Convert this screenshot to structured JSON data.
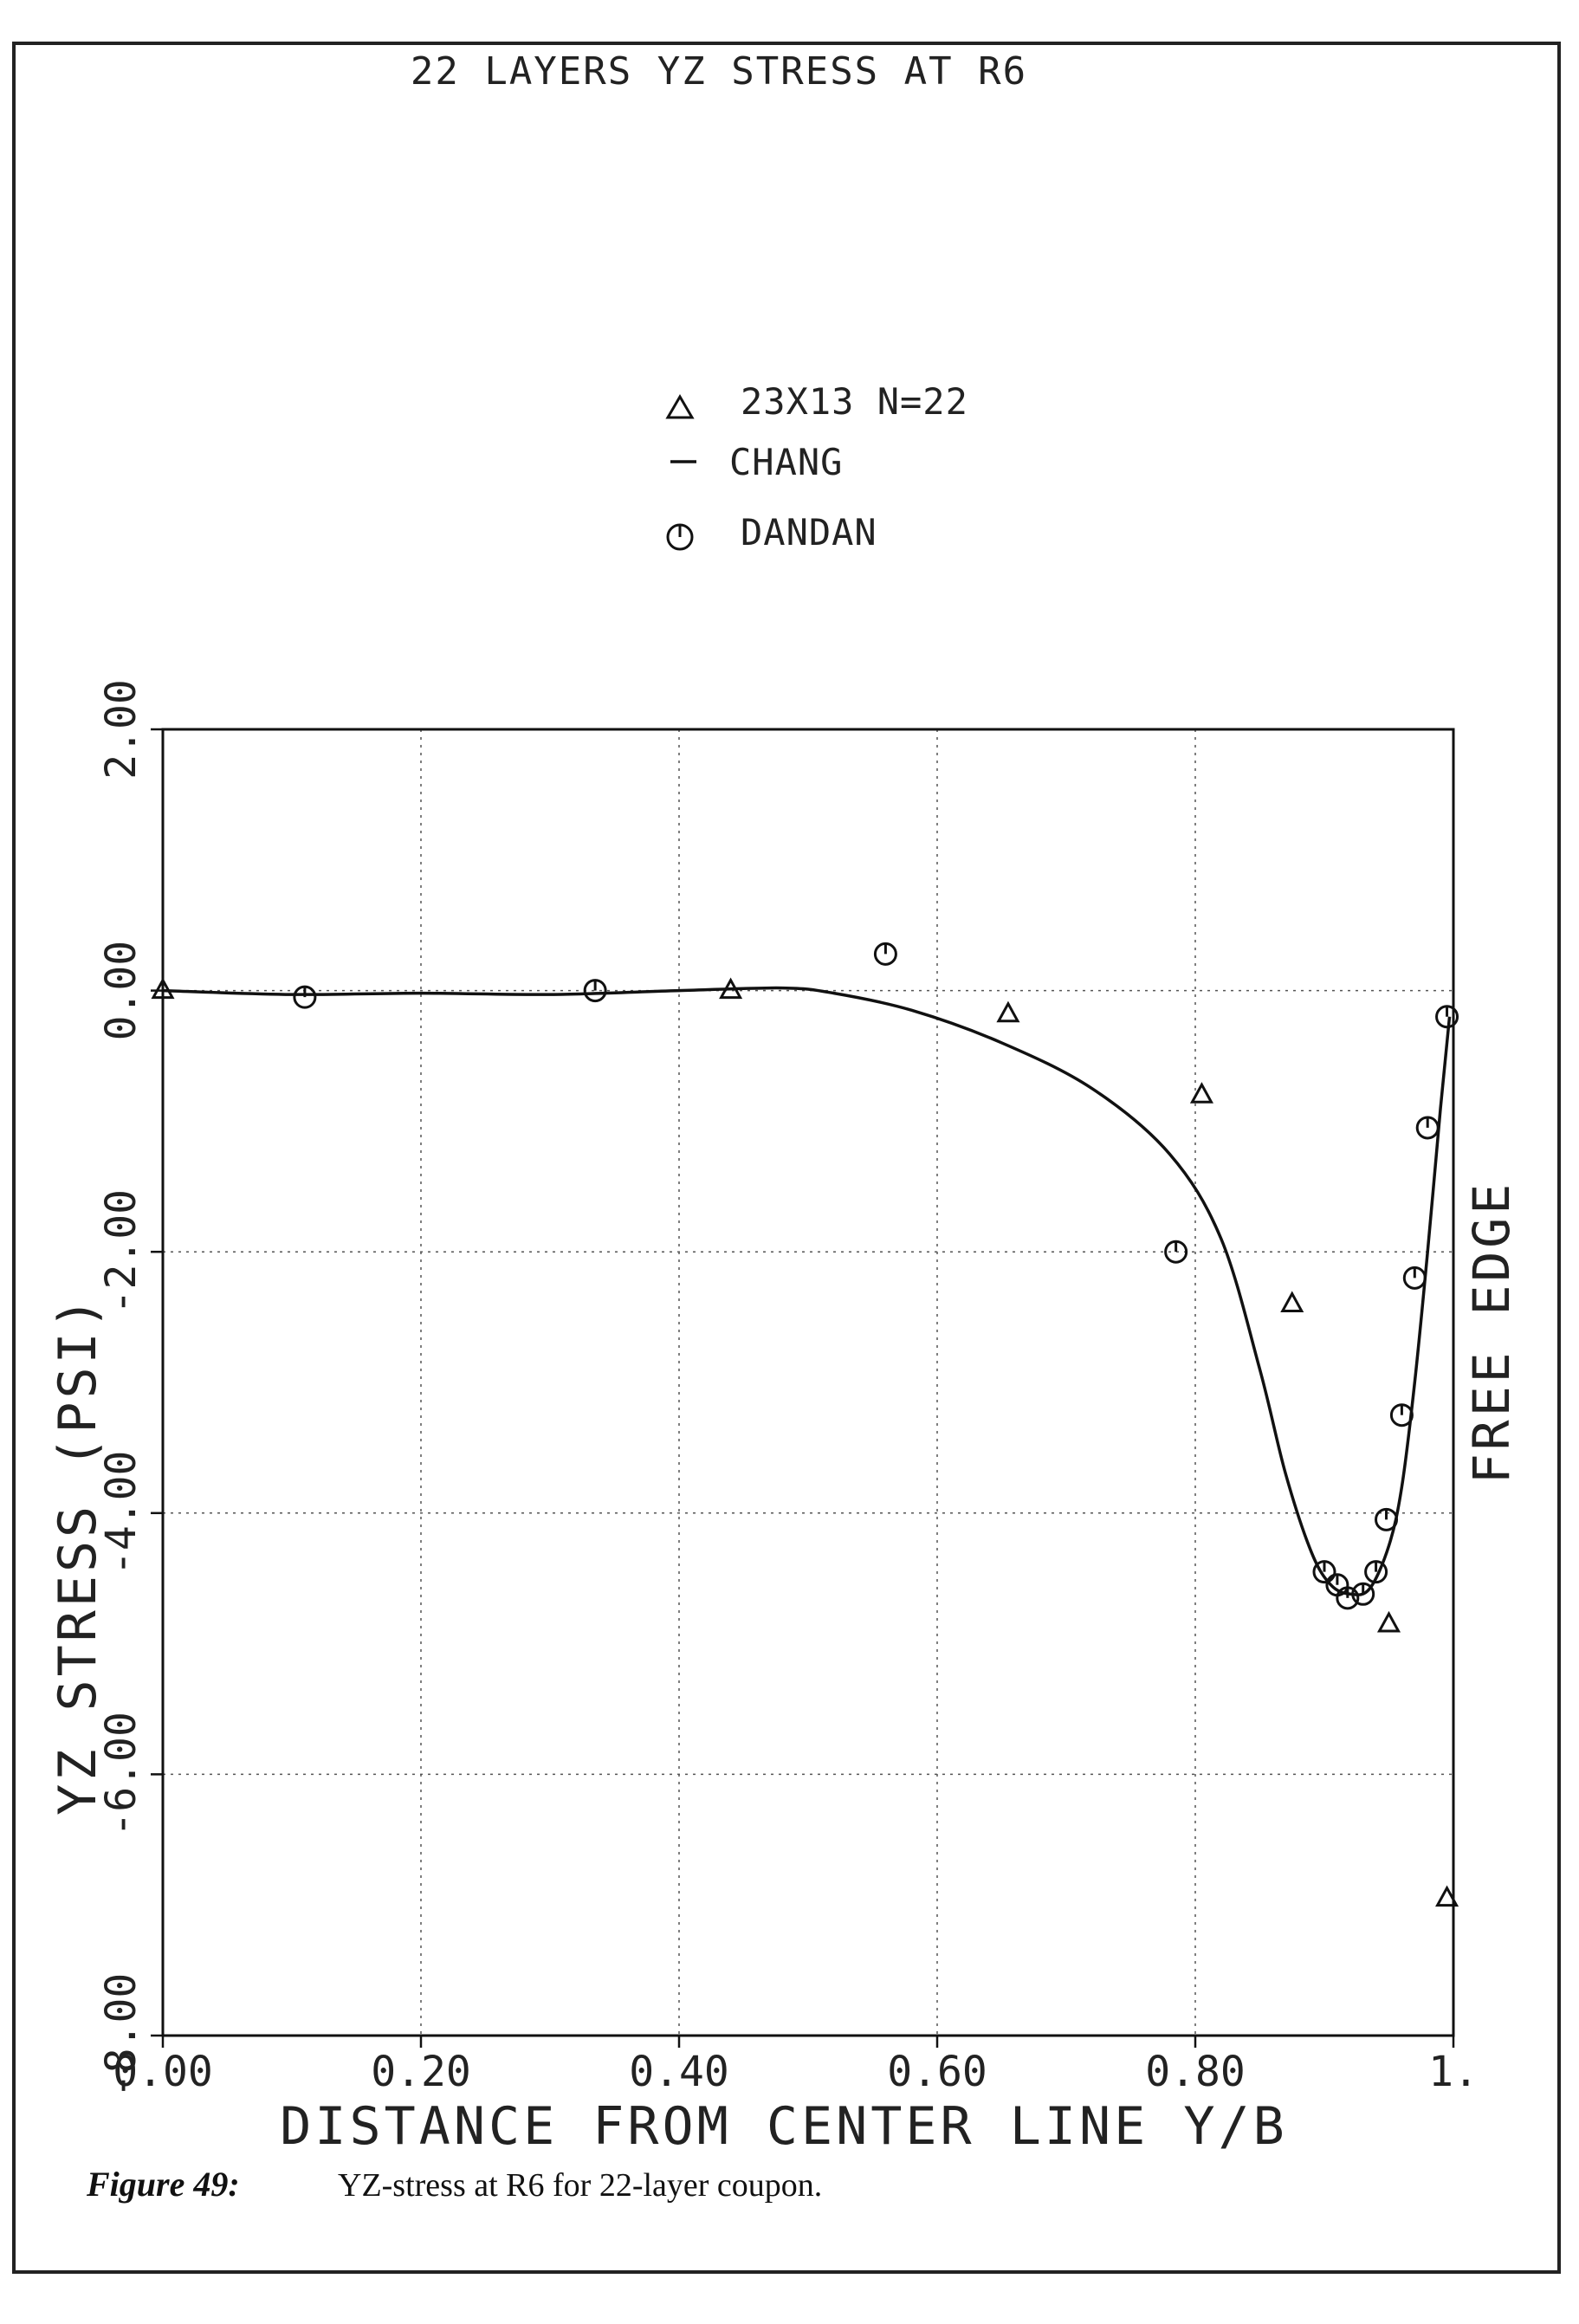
{
  "chart_data": {
    "type": "scatter",
    "title": "22 LAYERS YZ STRESS AT R6",
    "xlabel": "DISTANCE FROM CENTER LINE Y/B",
    "ylabel": "YZ STRESS (PSI)",
    "side_label": "FREE EDGE",
    "xlim": [
      0.0,
      1.0
    ],
    "ylim": [
      -8.0,
      2.0
    ],
    "grid": true,
    "legend_position": "top-center",
    "x_tick_labels": [
      "0.00",
      "0.20",
      "0.40",
      "0.60",
      "0.80",
      "1."
    ],
    "y_tick_labels": [
      "-8.00",
      "-6.00",
      "-4.00",
      "-2.00",
      "0.00",
      "2.00"
    ],
    "series": [
      {
        "name": "23X13 N=22",
        "marker": "triangle",
        "x": [
          0.0,
          0.44,
          0.655,
          0.805,
          0.875,
          0.95,
          0.995
        ],
        "y": [
          0.0,
          0.0,
          -0.18,
          -0.8,
          -2.4,
          -4.85,
          -6.95
        ]
      },
      {
        "name": "CHANG",
        "marker": "line",
        "x": [
          0.0,
          0.1,
          0.2,
          0.3,
          0.4,
          0.48,
          0.52,
          0.58,
          0.65,
          0.72,
          0.78,
          0.82,
          0.85,
          0.87,
          0.89,
          0.905,
          0.92,
          0.935,
          0.95,
          0.96,
          0.97,
          0.98,
          0.99,
          0.997
        ],
        "y": [
          0.0,
          -0.03,
          -0.02,
          -0.03,
          0.0,
          0.02,
          -0.02,
          -0.15,
          -0.4,
          -0.75,
          -1.25,
          -1.9,
          -2.9,
          -3.7,
          -4.3,
          -4.55,
          -4.62,
          -4.58,
          -4.25,
          -3.8,
          -3.0,
          -2.0,
          -0.9,
          -0.2
        ]
      },
      {
        "name": "DANDAN",
        "marker": "circle",
        "x": [
          0.11,
          0.335,
          0.56,
          0.785,
          0.9,
          0.91,
          0.918,
          0.93,
          0.94,
          0.948,
          0.96,
          0.97,
          0.98,
          0.995
        ],
        "y": [
          -0.05,
          0.0,
          0.28,
          -2.0,
          -4.45,
          -4.55,
          -4.65,
          -4.62,
          -4.45,
          -4.05,
          -3.25,
          -2.2,
          -1.05,
          -0.2
        ]
      }
    ]
  },
  "caption": {
    "figure_label": "Figure 49:",
    "text": "YZ-stress at R6 for 22-layer coupon."
  }
}
